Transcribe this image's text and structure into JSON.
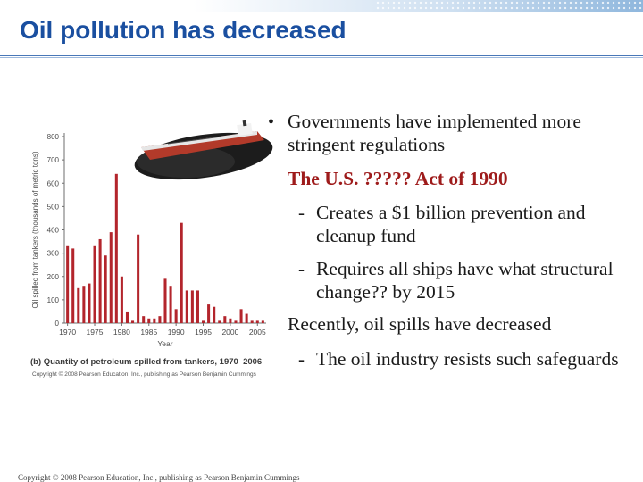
{
  "slide": {
    "title": "Oil pollution has decreased",
    "footer": "Copyright © 2008 Pearson Education, Inc., publishing as Pearson Benjamin Cummings"
  },
  "bullets": {
    "dot": "•",
    "dash": "-",
    "b1": "Governments have implemented more stringent regulations",
    "b2": "The U.S. ????? Act of 1990",
    "s1": "Creates a $1 billion prevention and cleanup fund",
    "s2": "Requires all ships have what structural change?? by 2015",
    "b3": "Recently, oil spills have decreased",
    "s3": "The oil industry resists such safeguards"
  },
  "figure": {
    "caption": "(b) Quantity of petroleum spilled from tankers, 1970–2006",
    "copyright": "Copyright © 2008 Pearson Education, Inc., publishing as Pearson Benjamin Cummings"
  },
  "chart_data": {
    "type": "bar",
    "title": "",
    "xlabel": "Year",
    "ylabel": "Oil spilled from tankers (thousands of metric tons)",
    "x": [
      1970,
      1971,
      1972,
      1973,
      1974,
      1975,
      1976,
      1977,
      1978,
      1979,
      1980,
      1981,
      1982,
      1983,
      1984,
      1985,
      1986,
      1987,
      1988,
      1989,
      1990,
      1991,
      1992,
      1993,
      1994,
      1995,
      1996,
      1997,
      1998,
      1999,
      2000,
      2001,
      2002,
      2003,
      2004,
      2005,
      2006
    ],
    "values": [
      330,
      320,
      150,
      160,
      170,
      330,
      360,
      290,
      390,
      640,
      200,
      50,
      10,
      380,
      30,
      20,
      20,
      30,
      190,
      160,
      60,
      430,
      140,
      140,
      140,
      10,
      80,
      70,
      10,
      30,
      20,
      10,
      60,
      40,
      10,
      10,
      10
    ],
    "x_ticks": [
      1970,
      1975,
      1980,
      1985,
      1990,
      1995,
      2000,
      2005
    ],
    "y_ticks": [
      0,
      100,
      200,
      300,
      400,
      500,
      600,
      700,
      800
    ],
    "ylim": [
      0,
      800
    ],
    "grid": false,
    "colors": {
      "bar": "#b3252c",
      "axis": "#6e6e6e",
      "text": "#4a4a4a"
    }
  }
}
